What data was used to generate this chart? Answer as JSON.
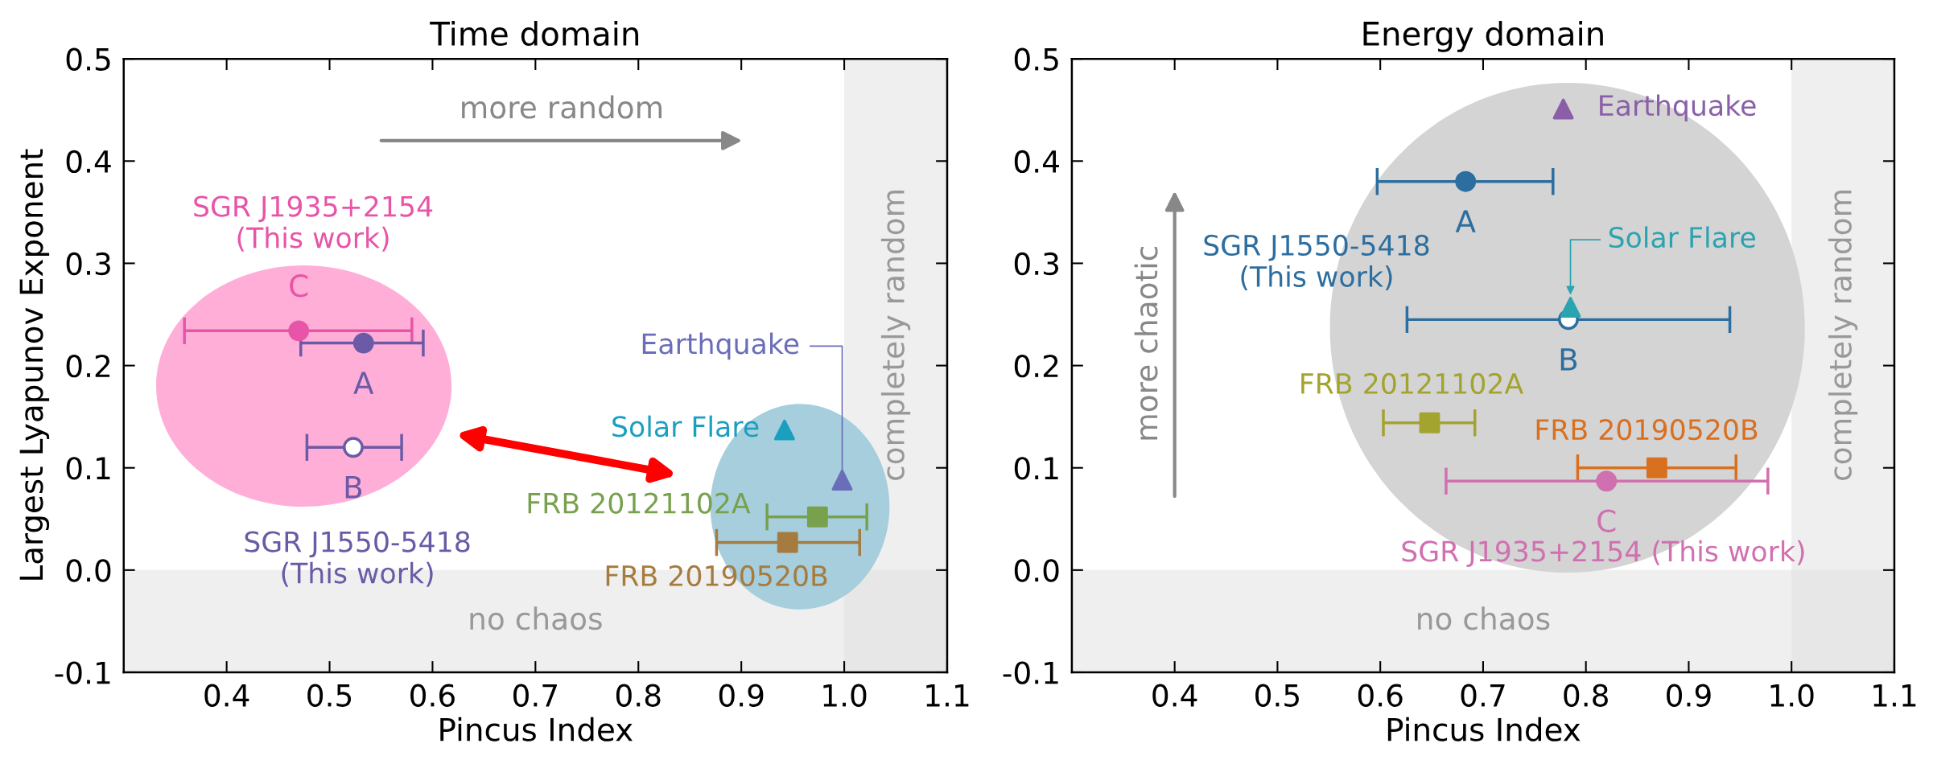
{
  "chart_data": [
    {
      "type": "scatter",
      "title": "Time domain",
      "xlabel": "Pincus Index",
      "ylabel": "Largest Lyapunov Exponent",
      "xlim": [
        0.3,
        1.1
      ],
      "ylim": [
        -0.1,
        0.5
      ],
      "xticks": [
        0.4,
        0.5,
        0.6,
        0.7,
        0.8,
        0.9,
        {
          "value": 1.0,
          "label": "1.0"
        },
        1.1
      ],
      "yticks": [
        -0.1,
        {
          "value": 0.0,
          "label": "0.0"
        },
        0.1,
        0.2,
        0.3,
        0.4,
        0.5
      ],
      "bands": [
        {
          "axis": "y",
          "from": -0.1,
          "to": 0.0,
          "label": "no chaos",
          "color": "#e0e0e0"
        },
        {
          "axis": "x",
          "from": 1.0,
          "to": 1.1,
          "label": "completely random",
          "color": "#e0e0e0"
        }
      ],
      "annotations": [
        "more random",
        {
          "text": "C",
          "x": 0.47,
          "y": 0.234
        },
        {
          "text": "A",
          "x": 0.533,
          "y": 0.222
        },
        {
          "text": "B",
          "x": 0.523,
          "y": 0.12
        }
      ],
      "series": [
        {
          "name": "SGR J1935+2154\n(This work)",
          "color": "#e754a8",
          "marker": "circle",
          "x": [
            0.47
          ],
          "values": [
            0.234
          ],
          "xerrors": [
            [
              0.359,
              0.58
            ]
          ]
        },
        {
          "name": "SGR J1550-5418\n(This work)",
          "color": "#6b5aa6",
          "marker": "circle",
          "colors": [
            "#6b5aa6",
            "#ffffff"
          ],
          "x": [
            0.533,
            0.523
          ],
          "values": [
            0.222,
            0.12
          ],
          "xerrors": [
            [
              0.472,
              0.591
            ],
            [
              0.478,
              0.57
            ]
          ]
        },
        {
          "name": "Earthquake",
          "color": "#6a6db8",
          "marker": "triangle",
          "x": [
            0.998
          ],
          "values": [
            0.088
          ]
        },
        {
          "name": "Solar Flare",
          "color": "#1a9fbf",
          "marker": "triangle",
          "x": [
            0.942
          ],
          "values": [
            0.137
          ]
        },
        {
          "name": "FRB 20121102A",
          "color": "#78a14e",
          "marker": "square",
          "x": [
            0.974
          ],
          "values": [
            0.052
          ],
          "xerrors": [
            [
              0.925,
              1.022
            ]
          ]
        },
        {
          "name": "FRB 20190520B",
          "color": "#a67b3f",
          "marker": "square",
          "x": [
            0.945
          ],
          "values": [
            0.027
          ],
          "xerrors": [
            [
              0.876,
              1.015
            ]
          ]
        }
      ]
    },
    {
      "type": "scatter",
      "title": "Energy domain",
      "xlabel": "Pincus Index",
      "xlim": [
        0.3,
        1.1
      ],
      "ylim": [
        -0.1,
        0.5
      ],
      "xticks": [
        0.4,
        0.5,
        0.6,
        0.7,
        0.8,
        0.9,
        {
          "value": 1.0,
          "label": "1.0"
        },
        1.1
      ],
      "yticks": [
        -0.1,
        {
          "value": 0.0,
          "label": "0.0"
        },
        0.1,
        0.2,
        0.3,
        0.4,
        0.5
      ],
      "bands": [
        {
          "axis": "y",
          "from": -0.1,
          "to": 0.0,
          "label": "no chaos",
          "color": "#e0e0e0"
        },
        {
          "axis": "x",
          "from": 1.0,
          "to": 1.1,
          "label": "completely random",
          "color": "#e0e0e0"
        }
      ],
      "annotations": [
        "more chaotic",
        {
          "text": "A",
          "x": 0.683,
          "y": 0.38
        },
        {
          "text": "B",
          "x": 0.783,
          "y": 0.245
        },
        {
          "text": "C",
          "x": 0.82,
          "y": 0.087
        }
      ],
      "series": [
        {
          "name": "SGR J1550-5418\n(This work)",
          "color": "#2c6e9f",
          "marker": "circle",
          "colors": [
            "#2c6e9f",
            "#ffffff"
          ],
          "x": [
            0.683,
            0.783
          ],
          "values": [
            0.38,
            0.245
          ],
          "xerrors": [
            [
              0.597,
              0.768
            ],
            [
              0.626,
              0.94
            ]
          ]
        },
        {
          "name": "Earthquake",
          "color": "#8a5fa8",
          "marker": "triangle",
          "x": [
            0.778
          ],
          "values": [
            0.451
          ]
        },
        {
          "name": "Solar Flare",
          "color": "#2aa4b0",
          "marker": "triangle",
          "x": [
            0.785
          ],
          "values": [
            0.257
          ]
        },
        {
          "name": "FRB 20121102A",
          "color": "#a3a32f",
          "marker": "square",
          "x": [
            0.648
          ],
          "values": [
            0.144
          ],
          "xerrors": [
            [
              0.603,
              0.692
            ]
          ]
        },
        {
          "name": "FRB 20190520B",
          "color": "#d87020",
          "marker": "square",
          "x": [
            0.869
          ],
          "values": [
            0.1
          ],
          "xerrors": [
            [
              0.792,
              0.946
            ]
          ]
        },
        {
          "name": "SGR J1935+2154 (This work)",
          "color": "#d070b0",
          "marker": "circle",
          "x": [
            0.82
          ],
          "values": [
            0.087
          ],
          "xerrors": [
            [
              0.664,
              0.977
            ]
          ]
        }
      ]
    }
  ]
}
